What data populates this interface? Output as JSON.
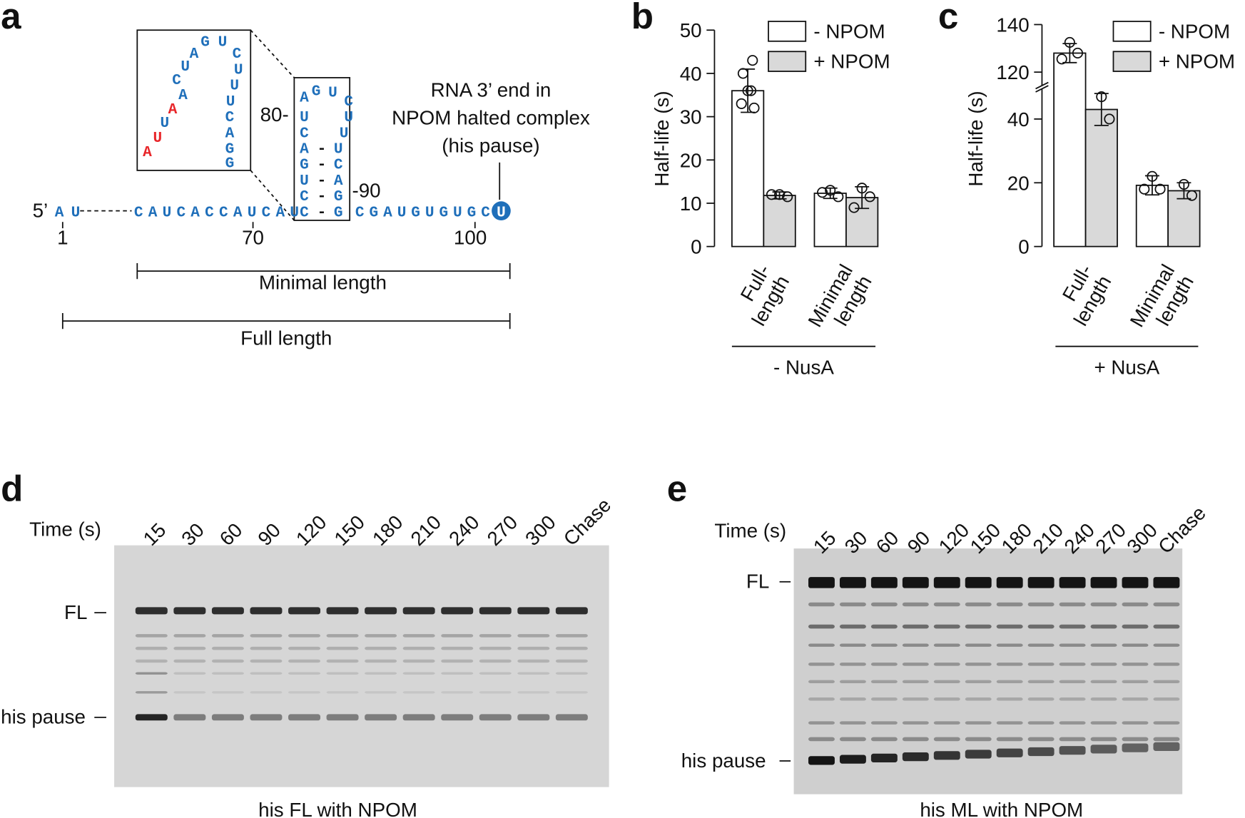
{
  "panel_labels": [
    "a",
    "b",
    "c",
    "d",
    "e"
  ],
  "panel_a": {
    "five_prime": "5’",
    "start": "AU",
    "seq_left": "CAUCACCAUCAU",
    "seq_right": "CGAUGUGUGC",
    "end": "U",
    "hairpin_left": [
      "C",
      "C",
      "U",
      "G",
      "A",
      "C",
      "U",
      "A"
    ],
    "hairpin_top": [
      "G",
      "U"
    ],
    "hairpin_right": [
      "G",
      "G",
      "A",
      "C",
      "U",
      "U",
      "U",
      "C"
    ],
    "pair_dash": "-",
    "inset": [
      {
        "text": "A",
        "color": "#e8262a"
      },
      {
        "text": "U",
        "color": "#e8262a"
      },
      {
        "text": "U",
        "color": "#1f6fba"
      },
      {
        "text": "A",
        "color": "#e8262a"
      },
      {
        "text": "A",
        "color": "#1f6fba"
      },
      {
        "text": "C",
        "color": "#1f6fba"
      },
      {
        "text": "U",
        "color": "#1f6fba"
      },
      {
        "text": "A",
        "color": "#1f6fba"
      },
      {
        "text": "G",
        "color": "#1f6fba"
      },
      {
        "text": "U",
        "color": "#1f6fba"
      },
      {
        "text": "C",
        "color": "#1f6fba"
      },
      {
        "text": "U",
        "color": "#1f6fba"
      },
      {
        "text": "U",
        "color": "#1f6fba"
      },
      {
        "text": "U",
        "color": "#1f6fba"
      },
      {
        "text": "C",
        "color": "#1f6fba"
      },
      {
        "text": "A",
        "color": "#1f6fba"
      },
      {
        "text": "G",
        "color": "#1f6fba"
      },
      {
        "text": "G",
        "color": "#1f6fba"
      }
    ],
    "pos_labels": [
      "80-",
      "-90"
    ],
    "ruler": [
      "1",
      "70",
      "100"
    ],
    "annotation": [
      "RNA 3’ end in",
      "NPOM halted complex",
      "(his pause)"
    ],
    "minimal": "Minimal length",
    "full": "Full length"
  },
  "chart_data": [
    {
      "type": "bar",
      "ylabel": "Half-life (s)",
      "categories": [
        [
          "Full-",
          "length"
        ],
        [
          "Minimal",
          "length"
        ]
      ],
      "group_label": "- NusA",
      "series": [
        {
          "name": "- NPOM",
          "color": "#ffffff",
          "values": [
            36,
            12.3
          ],
          "errors": [
            5,
            1.2
          ],
          "points": [
            [
              40,
              43,
              36,
              33,
              32,
              36
            ],
            [
              13,
              11.5,
              12.5
            ]
          ]
        },
        {
          "name": "+ NPOM",
          "color": "#d9d9d9",
          "values": [
            11.8,
            11.3
          ],
          "errors": [
            0.8,
            2.5
          ],
          "points": [
            [
              12,
              11.5,
              12
            ],
            [
              13.5,
              11.5,
              9
            ]
          ]
        }
      ],
      "ylim": [
        0,
        50
      ],
      "yticks": [
        0,
        10,
        20,
        30,
        40,
        50
      ]
    },
    {
      "type": "bar",
      "ylabel": "Half-life (s)",
      "categories": [
        [
          "Full-",
          "length"
        ],
        [
          "Minimal",
          "length"
        ]
      ],
      "group_label": "+ NusA",
      "series": [
        {
          "name": "- NPOM",
          "color": "#ffffff",
          "values": [
            128,
            19.2
          ],
          "errors": [
            4,
            3
          ],
          "points": [
            [
              132.5,
              128,
              125.5
            ],
            [
              22,
              18,
              18
            ]
          ]
        },
        {
          "name": "+ NPOM",
          "color": "#d9d9d9",
          "values": [
            43,
            17.5
          ],
          "errors": [
            5,
            2.5
          ],
          "points": [
            [
              47,
              40
            ],
            [
              19.5,
              16
            ]
          ]
        }
      ],
      "ylim": [
        0,
        140
      ],
      "axis_break": [
        48,
        115
      ],
      "yticks": [
        0,
        20,
        40,
        120,
        140
      ]
    }
  ],
  "gel_d": {
    "time_label": "Time (s)",
    "lanes": [
      "15",
      "30",
      "60",
      "90",
      "120",
      "150",
      "180",
      "210",
      "240",
      "270",
      "300",
      "Chase"
    ],
    "fl": "FL",
    "pause": "his pause",
    "caption": "his FL with NPOM"
  },
  "gel_e": {
    "time_label": "Time (s)",
    "lanes": [
      "15",
      "30",
      "60",
      "90",
      "120",
      "150",
      "180",
      "210",
      "240",
      "270",
      "300",
      "Chase"
    ],
    "fl": "FL",
    "pause": "his pause",
    "caption": "his ML with NPOM"
  }
}
